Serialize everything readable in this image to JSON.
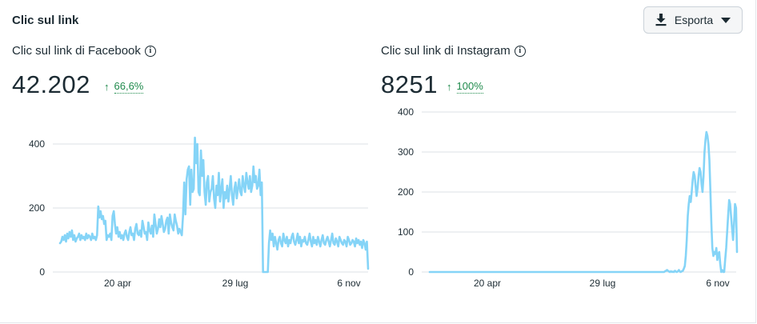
{
  "header": {
    "title": "Clic sul link",
    "export_label": "Esporta"
  },
  "panels": [
    {
      "title": "Clic sul link di Facebook",
      "total": "42.202",
      "delta_arrow": "↑",
      "delta_pct": "66,6%"
    },
    {
      "title": "Clic sul link di Instagram",
      "total": "8251",
      "delta_arrow": "↑",
      "delta_pct": "100%"
    }
  ],
  "info_glyph": "i",
  "colors": {
    "line": "#85d4f7",
    "grid": "#dde1e5",
    "delta_green": "#1f8a4c",
    "text": "#1c2b33"
  },
  "chart_data": [
    {
      "type": "line",
      "title": "Clic sul link di Facebook",
      "xticks": [
        "20 apr",
        "29 lug",
        "6 nov"
      ],
      "yticks": [
        0,
        200,
        400
      ],
      "ylim": [
        0,
        430
      ],
      "grid": true,
      "series": [
        {
          "values": [
            90,
            95,
            110,
            100,
            115,
            95,
            120,
            105,
            125,
            110,
            130,
            100,
            115,
            95,
            105,
            110,
            120,
            100,
            115,
            105,
            110,
            100,
            120,
            105,
            115,
            110,
            100,
            120,
            105,
            110,
            100,
            115,
            205,
            170,
            190,
            165,
            175,
            150,
            160,
            100,
            115,
            110,
            120,
            100,
            175,
            190,
            150,
            120,
            140,
            110,
            125,
            105,
            115,
            100,
            120,
            130,
            110,
            100,
            125,
            140,
            115,
            120,
            100,
            135,
            150,
            120,
            115,
            130,
            110,
            160,
            140,
            120,
            125,
            100,
            155,
            130,
            120,
            145,
            110,
            180,
            150,
            120,
            135,
            165,
            140,
            175,
            150,
            125,
            135,
            160,
            170,
            120,
            180,
            155,
            140,
            130,
            180,
            160,
            145,
            120,
            135,
            125,
            115,
            175,
            280,
            180,
            290,
            320,
            330,
            210,
            320,
            250,
            260,
            420,
            340,
            400,
            250,
            240,
            380,
            300,
            350,
            250,
            210,
            280,
            300,
            220,
            250,
            260,
            300,
            230,
            200,
            270,
            240,
            310,
            220,
            260,
            290,
            200,
            250,
            230,
            270,
            220,
            260,
            300,
            240,
            210,
            260,
            280,
            230,
            260,
            290,
            250,
            240,
            300,
            270,
            250,
            310,
            280,
            260,
            300,
            250,
            270,
            330,
            280,
            300,
            260,
            270,
            320,
            240,
            280,
            0,
            0,
            0,
            0,
            0,
            90,
            130,
            100,
            120,
            80,
            110,
            90,
            70,
            100,
            110,
            90,
            80,
            120,
            100,
            90,
            110,
            80,
            100,
            90,
            110,
            120,
            95,
            85,
            100,
            120,
            90,
            110,
            80,
            100,
            95,
            110,
            90,
            85,
            100,
            120,
            95,
            80,
            110,
            90,
            100,
            85,
            110,
            95,
            80,
            100,
            115,
            90,
            85,
            100,
            110,
            95,
            80,
            100,
            120,
            90,
            85,
            105,
            95,
            80,
            110,
            100,
            90,
            85,
            100,
            95,
            80,
            110,
            100,
            85,
            90,
            100,
            95,
            80,
            105,
            90,
            100,
            85,
            95,
            75,
            100,
            90,
            70,
            95,
            10
          ]
        }
      ]
    },
    {
      "type": "line",
      "title": "Clic sul link di Instagram",
      "xticks": [
        "20 apr",
        "29 lug",
        "6 nov"
      ],
      "yticks": [
        0,
        100,
        200,
        300,
        400
      ],
      "ylim": [
        0,
        400
      ],
      "grid": true,
      "series": [
        {
          "values": [
            0,
            0,
            0,
            0,
            0,
            0,
            0,
            0,
            0,
            0,
            0,
            0,
            0,
            0,
            0,
            0,
            0,
            0,
            0,
            0,
            0,
            0,
            0,
            0,
            0,
            0,
            0,
            0,
            0,
            0,
            0,
            0,
            0,
            0,
            0,
            0,
            0,
            0,
            0,
            0,
            0,
            0,
            0,
            0,
            0,
            0,
            0,
            0,
            0,
            0,
            0,
            0,
            0,
            0,
            0,
            0,
            0,
            0,
            0,
            0,
            0,
            0,
            0,
            0,
            0,
            0,
            0,
            0,
            0,
            0,
            0,
            0,
            0,
            0,
            0,
            0,
            0,
            0,
            0,
            0,
            0,
            0,
            0,
            0,
            0,
            0,
            0,
            0,
            0,
            0,
            0,
            0,
            0,
            0,
            0,
            0,
            0,
            0,
            0,
            0,
            0,
            0,
            0,
            0,
            0,
            0,
            0,
            0,
            0,
            0,
            0,
            0,
            0,
            0,
            0,
            0,
            0,
            0,
            0,
            0,
            0,
            0,
            0,
            0,
            0,
            0,
            0,
            0,
            0,
            0,
            0,
            0,
            0,
            0,
            0,
            0,
            0,
            0,
            0,
            0,
            0,
            0,
            0,
            0,
            0,
            0,
            0,
            0,
            0,
            0,
            0,
            0,
            0,
            0,
            0,
            0,
            0,
            0,
            0,
            0,
            0,
            0,
            0,
            0,
            0,
            0,
            0,
            0,
            0,
            0,
            0,
            0,
            0,
            0,
            0,
            0,
            0,
            0,
            0,
            0,
            0,
            0,
            0,
            0,
            0,
            0,
            0,
            0,
            0,
            0,
            0,
            0,
            0,
            0,
            0,
            0,
            0,
            0,
            0,
            0,
            0,
            0,
            0,
            0,
            0,
            0,
            0,
            0,
            0,
            0,
            0,
            0,
            0,
            0,
            0,
            0,
            0,
            0,
            0,
            0,
            0,
            0,
            0,
            0,
            0,
            0,
            0,
            0,
            0,
            0,
            0,
            0,
            0,
            0,
            0,
            0,
            0,
            0,
            0,
            2,
            3,
            5,
            3,
            1,
            0,
            2,
            0,
            1,
            0,
            3,
            1,
            0,
            2,
            5,
            1,
            0,
            2,
            3,
            8,
            15,
            40,
            80,
            140,
            170,
            190,
            175,
            200,
            230,
            250,
            240,
            215,
            190,
            210,
            240,
            260,
            250,
            220,
            200,
            240,
            300,
            330,
            350,
            340,
            320,
            280,
            200,
            120,
            60,
            40,
            50,
            45,
            60,
            30,
            45,
            50,
            20,
            0,
            5,
            0,
            0,
            30,
            60,
            100,
            140,
            180,
            170,
            140,
            110,
            80,
            120,
            170,
            160,
            50
          ]
        }
      ]
    }
  ]
}
